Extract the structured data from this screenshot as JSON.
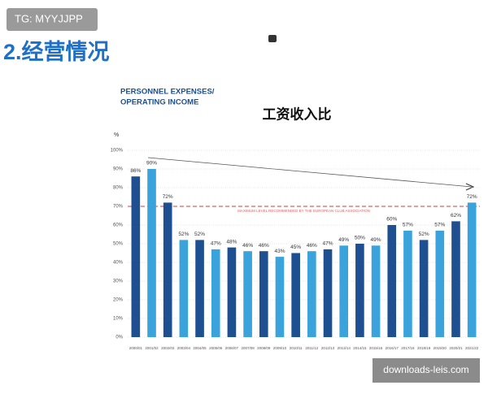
{
  "badge": "TG: MYYJJPP",
  "heading": "2.经营情况",
  "watermark": "downloads-leis.com",
  "chart_data": {
    "type": "bar",
    "title": "工资收入比",
    "y_label_lines": [
      "PERSONNEL EXPENSES/",
      "OPERATING INCOME"
    ],
    "y_unit": "%",
    "categories": [
      "2000/01",
      "2001/02",
      "2002/03",
      "2003/04",
      "2004/05",
      "2005/06",
      "2006/07",
      "2007/08",
      "2008/09",
      "2009/10",
      "2010/11",
      "2011/12",
      "2012/13",
      "2013/14",
      "2014/15",
      "2015/16",
      "2016/17",
      "2017/18",
      "2018/19",
      "2019/20",
      "2020/21",
      "2021/22"
    ],
    "values": [
      86,
      90,
      72,
      52,
      52,
      47,
      48,
      46,
      46,
      43,
      45,
      46,
      47,
      49,
      50,
      49,
      60,
      57,
      52,
      57,
      62,
      72
    ],
    "value_labels": [
      "86%",
      "90%",
      "72%",
      "52%",
      "52%",
      "47%",
      "48%",
      "46%",
      "46%",
      "43%",
      "45%",
      "46%",
      "47%",
      "49%",
      "50%",
      "49%",
      "60%",
      "57%",
      "52%",
      "57%",
      "62%",
      "72%"
    ],
    "colors": [
      "#1d4f91",
      "#3aa3dc",
      "#1d4f91",
      "#3aa3dc",
      "#1d4f91",
      "#3aa3dc",
      "#1d4f91",
      "#3aa3dc",
      "#1d4f91",
      "#3aa3dc",
      "#1d4f91",
      "#3aa3dc",
      "#1d4f91",
      "#3aa3dc",
      "#1d4f91",
      "#3aa3dc",
      "#1d4f91",
      "#3aa3dc",
      "#1d4f91",
      "#3aa3dc",
      "#1d4f91",
      "#3aa3dc"
    ],
    "ylim": [
      0,
      100
    ],
    "yticks": [
      {
        "value": 0,
        "label": "0%"
      },
      {
        "value": 10,
        "label": "10%"
      },
      {
        "value": 20,
        "label": "20%"
      },
      {
        "value": 30,
        "label": "30%"
      },
      {
        "value": 40,
        "label": "40%"
      },
      {
        "value": 50,
        "label": "50%"
      },
      {
        "value": 60,
        "label": "60%"
      },
      {
        "value": 70,
        "label": "70%"
      },
      {
        "value": 80,
        "label": "80%"
      },
      {
        "value": 90,
        "label": "90%"
      },
      {
        "value": 100,
        "label": "100%"
      }
    ],
    "grid": true,
    "reference_line": {
      "value": 70,
      "label": "MAXIMUM LEVEL RECOMMENDED BY THE EUROPEAN CLUB ASSOCIATION",
      "color": "#e06060"
    }
  }
}
